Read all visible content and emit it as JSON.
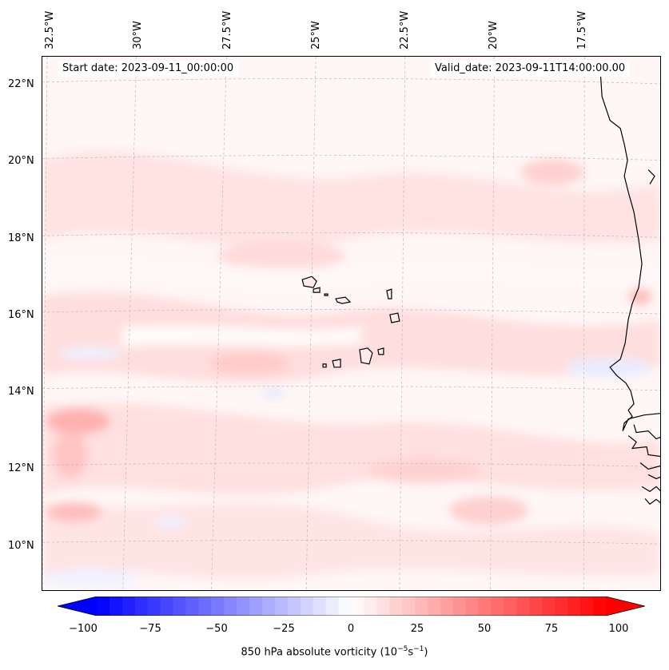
{
  "header": {
    "start_date": "Start date: 2023-09-11_00:00:00",
    "valid_date": "Valid_date: 2023-09-11T14:00:00.00"
  },
  "longitude_labels": [
    "32.5°W",
    "30°W",
    "27.5°W",
    "25°W",
    "22.5°W",
    "20°W",
    "17.5°W"
  ],
  "latitude_labels": [
    "22°N",
    "20°N",
    "18°N",
    "16°N",
    "14°N",
    "12°N",
    "10°N"
  ],
  "colorbar": {
    "label_main": "850 hPa absolute vorticity (10",
    "label_exp1": "−5",
    "label_mid": "s",
    "label_exp2": "−1",
    "label_end": ")",
    "ticks": [
      "−100",
      "−75",
      "−50",
      "−25",
      "0",
      "25",
      "50",
      "75",
      "100"
    ],
    "min": -100,
    "max": 100,
    "neg_color": "#0000ff",
    "pos_color": "#ff0000"
  },
  "map": {
    "region": "Eastern tropical Atlantic, Cape Verde Islands, West African coast",
    "field": "850 hPa absolute vorticity",
    "coastline_color": "#000000",
    "gridline_style": "dashed gray"
  }
}
